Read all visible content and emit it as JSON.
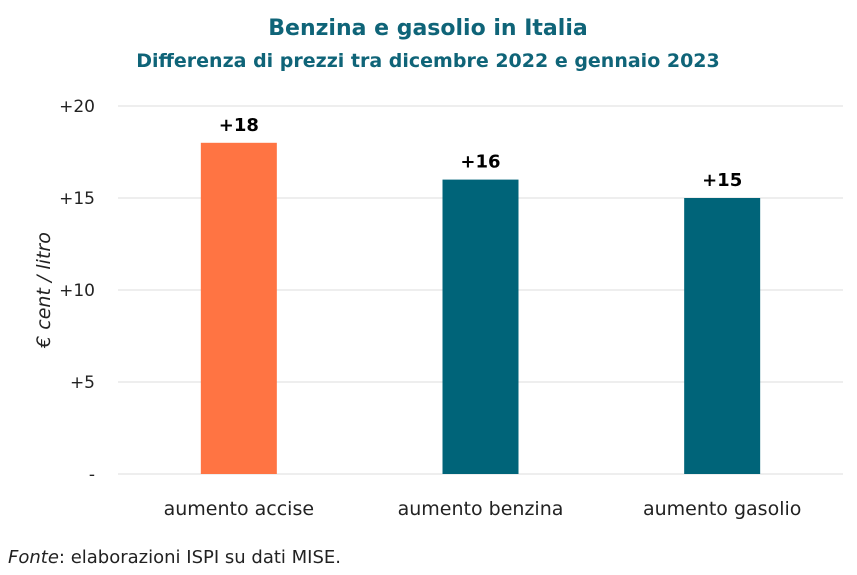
{
  "chart_data": {
    "type": "bar",
    "title": "Benzina e gasolio in Italia",
    "subtitle": "Differenza di prezzi tra dicembre 2022 e gennaio 2023",
    "ylabel": "€ cent / litro",
    "xlabel": "",
    "categories": [
      "aumento accise",
      "aumento benzina",
      "aumento gasolio"
    ],
    "values": [
      18,
      16,
      15
    ],
    "data_labels": [
      "+18",
      "+16",
      "+15"
    ],
    "bar_colors": [
      "#ff7443",
      "#006479",
      "#006479"
    ],
    "ylim": [
      0,
      20
    ],
    "yticks": [
      0,
      5,
      10,
      15,
      20
    ],
    "ytick_labels": [
      "-",
      "+5",
      "+10",
      "+15",
      "+20"
    ],
    "grid": true,
    "legend": "none"
  },
  "source": {
    "label": "Fonte",
    "text": ": elaborazioni ISPI su dati MISE."
  }
}
